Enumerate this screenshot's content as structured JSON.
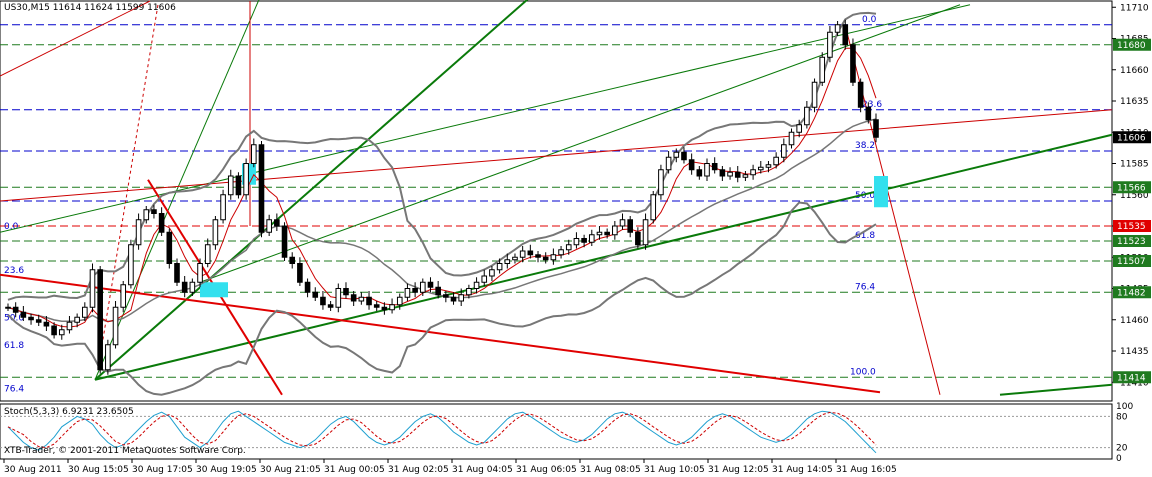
{
  "header": {
    "symbol_line": "US30,M15  11614 11624 11599 11606"
  },
  "stoch_header": "Stoch(5,3,3) 6.9231 23.6505",
  "copyright": "XTB-Trader, © 2001-2011 MetaQuotes Software Corp.",
  "chart_data": {
    "type": "candlestick",
    "ylim": [
      11395,
      11715
    ],
    "y_ticks": [
      "11710",
      "11685",
      "11660",
      "11635",
      "11610",
      "11585",
      "11560",
      "11535",
      "11510",
      "11485",
      "11460",
      "11435",
      "11410"
    ],
    "price_boxes": [
      {
        "label": "11680",
        "value": 11680,
        "color": "#1f7a1f"
      },
      {
        "label": "11606",
        "value": 11606,
        "color": "#000000"
      },
      {
        "label": "11566",
        "value": 11566,
        "color": "#1f7a1f"
      },
      {
        "label": "11535",
        "value": 11535,
        "color": "#e00000"
      },
      {
        "label": "11523",
        "value": 11523,
        "color": "#1f7a1f"
      },
      {
        "label": "11507",
        "value": 11507,
        "color": "#1f7a1f"
      },
      {
        "label": "11482",
        "value": 11482,
        "color": "#1f7a1f"
      },
      {
        "label": "11414",
        "value": 11414,
        "color": "#1f7a1f"
      }
    ],
    "x_labels": [
      "30 Aug 2011",
      "30 Aug 15:05",
      "30 Aug 17:05",
      "30 Aug 19:05",
      "30 Aug 21:05",
      "31 Aug 00:05",
      "31 Aug 02:05",
      "31 Aug 04:05",
      "31 Aug 06:05",
      "31 Aug 08:05",
      "31 Aug 10:05",
      "31 Aug 12:05",
      "31 Aug 14:05",
      "31 Aug 16:05"
    ],
    "fibo_labels_right": [
      "0.0",
      "23.6",
      "38.2",
      "50.0",
      "61.8",
      "76.4",
      "100.0"
    ],
    "fibo_labels_left": [
      "0.0",
      "23.6",
      "50.0",
      "61.8",
      "76.4"
    ],
    "stoch_ticks": [
      "100",
      "80",
      "20",
      "0"
    ],
    "closes": [
      11470,
      11466,
      11462,
      11460,
      11458,
      11455,
      11448,
      11452,
      11458,
      11462,
      11470,
      11500,
      11420,
      11440,
      11470,
      11488,
      11520,
      11540,
      11548,
      11545,
      11530,
      11505,
      11490,
      11482,
      11490,
      11505,
      11520,
      11540,
      11560,
      11575,
      11560,
      11585,
      11600,
      11530,
      11540,
      11535,
      11510,
      11505,
      11490,
      11482,
      11478,
      11472,
      11470,
      11485,
      11480,
      11475,
      11478,
      11472,
      11470,
      11468,
      11472,
      11478,
      11485,
      11482,
      11490,
      11486,
      11480,
      11478,
      11475,
      11480,
      11485,
      11490,
      11495,
      11500,
      11505,
      11508,
      11510,
      11515,
      11512,
      11510,
      11508,
      11512,
      11516,
      11520,
      11525,
      11522,
      11528,
      11530,
      11528,
      11535,
      11540,
      11530,
      11520,
      11540,
      11560,
      11580,
      11590,
      11594,
      11588,
      11580,
      11575,
      11585,
      11580,
      11575,
      11578,
      11574,
      11576,
      11580,
      11582,
      11584,
      11590,
      11600,
      11610,
      11616,
      11630,
      11650,
      11670,
      11690,
      11696,
      11680,
      11650,
      11630,
      11620,
      11606
    ],
    "stoch_k": [
      60,
      45,
      30,
      20,
      15,
      25,
      40,
      60,
      70,
      80,
      75,
      65,
      45,
      30,
      20,
      25,
      40,
      55,
      70,
      82,
      88,
      80,
      60,
      40,
      30,
      20,
      30,
      50,
      70,
      85,
      90,
      80,
      70,
      60,
      50,
      40,
      30,
      25,
      20,
      25,
      35,
      50,
      65,
      75,
      80,
      70,
      55,
      40,
      30,
      25,
      30,
      40,
      55,
      70,
      80,
      85,
      78,
      65,
      50,
      40,
      30,
      25,
      30,
      45,
      60,
      75,
      85,
      88,
      80,
      70,
      60,
      50,
      40,
      35,
      30,
      35,
      45,
      60,
      75,
      85,
      88,
      82,
      70,
      60,
      50,
      40,
      30,
      25,
      30,
      40,
      55,
      70,
      80,
      85,
      80,
      70,
      60,
      50,
      40,
      35,
      30,
      35,
      45,
      60,
      75,
      85,
      90,
      88,
      80,
      70,
      55,
      40,
      25,
      10
    ]
  }
}
